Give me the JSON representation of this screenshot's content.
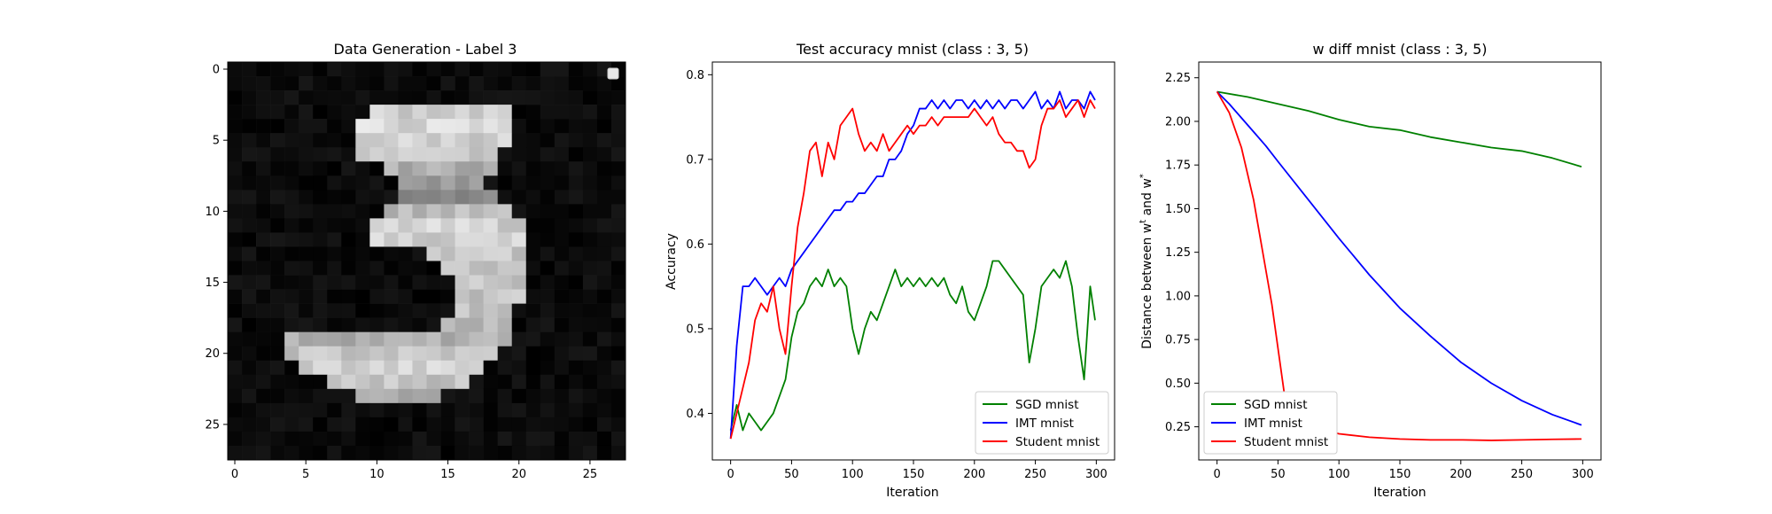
{
  "figure": {
    "panels": [
      {
        "title": "Data Generation - Label 3",
        "xticks": [
          "0",
          "5",
          "10",
          "15",
          "20",
          "25"
        ],
        "yticks": [
          "0",
          "5",
          "10",
          "15",
          "20",
          "25"
        ]
      },
      {
        "title": "Test accuracy mnist (class : 3, 5)",
        "xlabel": "Iteration",
        "ylabel": "Accuracy",
        "xticks": [
          "0",
          "50",
          "100",
          "150",
          "200",
          "250",
          "300"
        ],
        "yticks": [
          "0.4",
          "0.5",
          "0.6",
          "0.7",
          "0.8"
        ],
        "legend": [
          "SGD mnist",
          "IMT mnist",
          "Student mnist"
        ]
      },
      {
        "title": "w diff mnist (class : 3, 5)",
        "xlabel": "Iteration",
        "ylabel_pre": "Distance between w",
        "ylabel_sup1": "t",
        "ylabel_mid": " and w",
        "ylabel_sup2": "*",
        "xticks": [
          "0",
          "50",
          "100",
          "150",
          "200",
          "250",
          "300"
        ],
        "yticks": [
          "0.25",
          "0.50",
          "0.75",
          "1.00",
          "1.25",
          "1.50",
          "1.75",
          "2.00",
          "2.25"
        ],
        "legend": [
          "SGD mnist",
          "IMT mnist",
          "Student mnist"
        ]
      }
    ]
  },
  "chart_data": [
    {
      "type": "heatmap",
      "title": "Data Generation - Label 3",
      "colormap": "gray",
      "grid_size": [
        28,
        28
      ],
      "xlim": [
        -0.5,
        27.5
      ],
      "ylim": [
        27.5,
        -0.5
      ],
      "bright_rows": [
        {
          "row": 3,
          "cols": [
            10,
            19
          ],
          "level": 0.9
        },
        {
          "row": 4,
          "cols": [
            9,
            19
          ],
          "level": 0.93
        },
        {
          "row": 5,
          "cols": [
            9,
            19
          ],
          "level": 0.9
        },
        {
          "row": 6,
          "cols": [
            9,
            18
          ],
          "level": 0.85
        },
        {
          "row": 7,
          "cols": [
            11,
            18
          ],
          "level": 0.75
        },
        {
          "row": 8,
          "cols": [
            12,
            17
          ],
          "level": 0.65
        },
        {
          "row": 9,
          "cols": [
            12,
            18
          ],
          "level": 0.6
        },
        {
          "row": 10,
          "cols": [
            11,
            19
          ],
          "level": 0.8
        },
        {
          "row": 11,
          "cols": [
            10,
            20
          ],
          "level": 0.9
        },
        {
          "row": 12,
          "cols": [
            10,
            20
          ],
          "level": 0.9
        },
        {
          "row": 13,
          "cols": [
            14,
            20
          ],
          "level": 0.85
        },
        {
          "row": 14,
          "cols": [
            15,
            20
          ],
          "level": 0.85
        },
        {
          "row": 15,
          "cols": [
            16,
            20
          ],
          "level": 0.85
        },
        {
          "row": 16,
          "cols": [
            16,
            20
          ],
          "level": 0.85
        },
        {
          "row": 17,
          "cols": [
            16,
            19
          ],
          "level": 0.85
        },
        {
          "row": 18,
          "cols": [
            15,
            19
          ],
          "level": 0.8
        },
        {
          "row": 19,
          "cols": [
            4,
            19
          ],
          "level": 0.75
        },
        {
          "row": 20,
          "cols": [
            4,
            18
          ],
          "level": 0.85
        },
        {
          "row": 21,
          "cols": [
            5,
            17
          ],
          "level": 0.9
        },
        {
          "row": 22,
          "cols": [
            7,
            16
          ],
          "level": 0.85
        },
        {
          "row": 23,
          "cols": [
            9,
            14
          ],
          "level": 0.75
        }
      ],
      "legend_marker": "small empty legend box at top-right"
    },
    {
      "type": "line",
      "title": "Test accuracy mnist (class : 3, 5)",
      "xlabel": "Iteration",
      "ylabel": "Accuracy",
      "xlim": [
        -15,
        315
      ],
      "ylim": [
        0.345,
        0.815
      ],
      "legend_position": "lower right",
      "series": [
        {
          "name": "SGD mnist",
          "color": "#008000",
          "x": [
            0,
            5,
            10,
            15,
            20,
            25,
            30,
            35,
            40,
            45,
            50,
            55,
            60,
            65,
            70,
            75,
            80,
            85,
            90,
            95,
            100,
            105,
            110,
            115,
            120,
            125,
            130,
            135,
            140,
            145,
            150,
            155,
            160,
            165,
            170,
            175,
            180,
            185,
            190,
            195,
            200,
            205,
            210,
            215,
            220,
            225,
            230,
            235,
            240,
            245,
            250,
            255,
            260,
            265,
            270,
            275,
            280,
            285,
            290,
            295,
            299
          ],
          "y": [
            0.38,
            0.41,
            0.38,
            0.4,
            0.39,
            0.38,
            0.39,
            0.4,
            0.42,
            0.44,
            0.49,
            0.52,
            0.53,
            0.55,
            0.56,
            0.55,
            0.57,
            0.55,
            0.56,
            0.55,
            0.5,
            0.47,
            0.5,
            0.52,
            0.51,
            0.53,
            0.55,
            0.57,
            0.55,
            0.56,
            0.55,
            0.56,
            0.55,
            0.56,
            0.55,
            0.56,
            0.54,
            0.53,
            0.55,
            0.52,
            0.51,
            0.53,
            0.55,
            0.58,
            0.58,
            0.57,
            0.56,
            0.55,
            0.54,
            0.46,
            0.5,
            0.55,
            0.56,
            0.57,
            0.56,
            0.58,
            0.55,
            0.49,
            0.44,
            0.55,
            0.51
          ]
        },
        {
          "name": "IMT mnist",
          "color": "#0000ff",
          "x": [
            0,
            5,
            10,
            15,
            20,
            25,
            30,
            35,
            40,
            45,
            50,
            55,
            60,
            65,
            70,
            75,
            80,
            85,
            90,
            95,
            100,
            105,
            110,
            115,
            120,
            125,
            130,
            135,
            140,
            145,
            150,
            155,
            160,
            165,
            170,
            175,
            180,
            185,
            190,
            195,
            200,
            205,
            210,
            215,
            220,
            225,
            230,
            235,
            240,
            245,
            250,
            255,
            260,
            265,
            270,
            275,
            280,
            285,
            290,
            295,
            299
          ],
          "y": [
            0.37,
            0.48,
            0.55,
            0.55,
            0.56,
            0.55,
            0.54,
            0.55,
            0.56,
            0.55,
            0.57,
            0.58,
            0.59,
            0.6,
            0.61,
            0.62,
            0.63,
            0.64,
            0.64,
            0.65,
            0.65,
            0.66,
            0.66,
            0.67,
            0.68,
            0.68,
            0.7,
            0.7,
            0.71,
            0.73,
            0.74,
            0.76,
            0.76,
            0.77,
            0.76,
            0.77,
            0.76,
            0.77,
            0.77,
            0.76,
            0.77,
            0.76,
            0.77,
            0.76,
            0.77,
            0.76,
            0.77,
            0.77,
            0.76,
            0.77,
            0.78,
            0.76,
            0.77,
            0.76,
            0.78,
            0.76,
            0.77,
            0.77,
            0.76,
            0.78,
            0.77
          ]
        },
        {
          "name": "Student mnist",
          "color": "#ff0000",
          "x": [
            0,
            5,
            10,
            15,
            20,
            25,
            30,
            35,
            40,
            45,
            50,
            55,
            60,
            65,
            70,
            75,
            80,
            85,
            90,
            95,
            100,
            105,
            110,
            115,
            120,
            125,
            130,
            135,
            140,
            145,
            150,
            155,
            160,
            165,
            170,
            175,
            180,
            185,
            190,
            195,
            200,
            205,
            210,
            215,
            220,
            225,
            230,
            235,
            240,
            245,
            250,
            255,
            260,
            265,
            270,
            275,
            280,
            285,
            290,
            295,
            299
          ],
          "y": [
            0.37,
            0.4,
            0.43,
            0.46,
            0.51,
            0.53,
            0.52,
            0.55,
            0.5,
            0.47,
            0.55,
            0.62,
            0.66,
            0.71,
            0.72,
            0.68,
            0.72,
            0.7,
            0.74,
            0.75,
            0.76,
            0.73,
            0.71,
            0.72,
            0.71,
            0.73,
            0.71,
            0.72,
            0.73,
            0.74,
            0.73,
            0.74,
            0.74,
            0.75,
            0.74,
            0.75,
            0.75,
            0.75,
            0.75,
            0.75,
            0.76,
            0.75,
            0.74,
            0.75,
            0.73,
            0.72,
            0.72,
            0.71,
            0.71,
            0.69,
            0.7,
            0.74,
            0.76,
            0.76,
            0.77,
            0.75,
            0.76,
            0.77,
            0.75,
            0.77,
            0.76
          ]
        }
      ]
    },
    {
      "type": "line",
      "title": "w diff mnist (class : 3, 5)",
      "xlabel": "Iteration",
      "ylabel": "Distance between w^t and w^*",
      "xlim": [
        -15,
        315
      ],
      "ylim": [
        0.06,
        2.34
      ],
      "legend_position": "lower left",
      "series": [
        {
          "name": "SGD mnist",
          "color": "#008000",
          "x": [
            0,
            25,
            50,
            75,
            100,
            125,
            150,
            175,
            200,
            225,
            250,
            275,
            299
          ],
          "y": [
            2.17,
            2.14,
            2.1,
            2.06,
            2.01,
            1.97,
            1.95,
            1.91,
            1.88,
            1.85,
            1.83,
            1.79,
            1.74
          ]
        },
        {
          "name": "IMT mnist",
          "color": "#0000ff",
          "x": [
            0,
            10,
            20,
            30,
            40,
            50,
            75,
            100,
            125,
            150,
            175,
            200,
            225,
            250,
            275,
            299
          ],
          "y": [
            2.17,
            2.1,
            2.02,
            1.94,
            1.86,
            1.77,
            1.55,
            1.33,
            1.12,
            0.93,
            0.77,
            0.62,
            0.5,
            0.4,
            0.32,
            0.26
          ]
        },
        {
          "name": "Student mnist",
          "color": "#ff0000",
          "x": [
            0,
            10,
            20,
            30,
            40,
            45,
            50,
            55,
            60,
            70,
            80,
            100,
            125,
            150,
            175,
            200,
            225,
            250,
            275,
            299
          ],
          "y": [
            2.17,
            2.05,
            1.85,
            1.55,
            1.15,
            0.95,
            0.7,
            0.45,
            0.32,
            0.28,
            0.25,
            0.21,
            0.19,
            0.18,
            0.175,
            0.175,
            0.172,
            0.175,
            0.178,
            0.18
          ]
        }
      ]
    }
  ]
}
